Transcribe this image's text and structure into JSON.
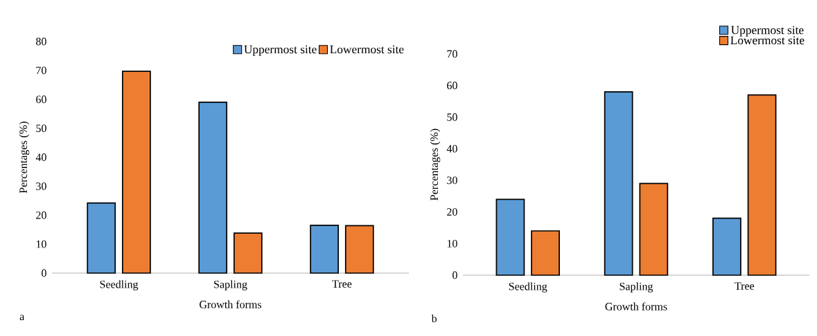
{
  "chart_data": [
    {
      "type": "bar",
      "xlabel": "Growth forms",
      "ylabel": "Percentages (%)",
      "categories": [
        "Seedling",
        "Sapling",
        "Tree"
      ],
      "series": [
        {
          "name": "Uppermost site",
          "color": "#5b9bd5",
          "values": [
            24.2,
            59,
            16.5
          ]
        },
        {
          "name": "Lowermost site",
          "color": "#ed7d31",
          "values": [
            69.7,
            13.8,
            16.4
          ]
        }
      ],
      "ylim": [
        0,
        80
      ],
      "yticks": [
        0,
        10,
        20,
        30,
        40,
        50,
        60,
        70,
        80
      ],
      "grid": false,
      "legend": "top right",
      "annotations": [
        "a"
      ]
    },
    {
      "type": "bar",
      "xlabel": "Growth forms",
      "ylabel": "Percentages (%)",
      "categories": [
        "Seedling",
        "Sapling",
        "Tree"
      ],
      "series": [
        {
          "name": "Uppermost site",
          "color": "#5b9bd5",
          "values": [
            24,
            58,
            18
          ]
        },
        {
          "name": "Lowermost site",
          "color": "#ed7d31",
          "values": [
            14,
            29,
            57
          ]
        }
      ],
      "ylim": [
        0,
        70
      ],
      "yticks": [
        0,
        10,
        20,
        30,
        40,
        50,
        60,
        70
      ],
      "grid": false,
      "legend": "top",
      "annotations": [
        "b"
      ]
    }
  ]
}
